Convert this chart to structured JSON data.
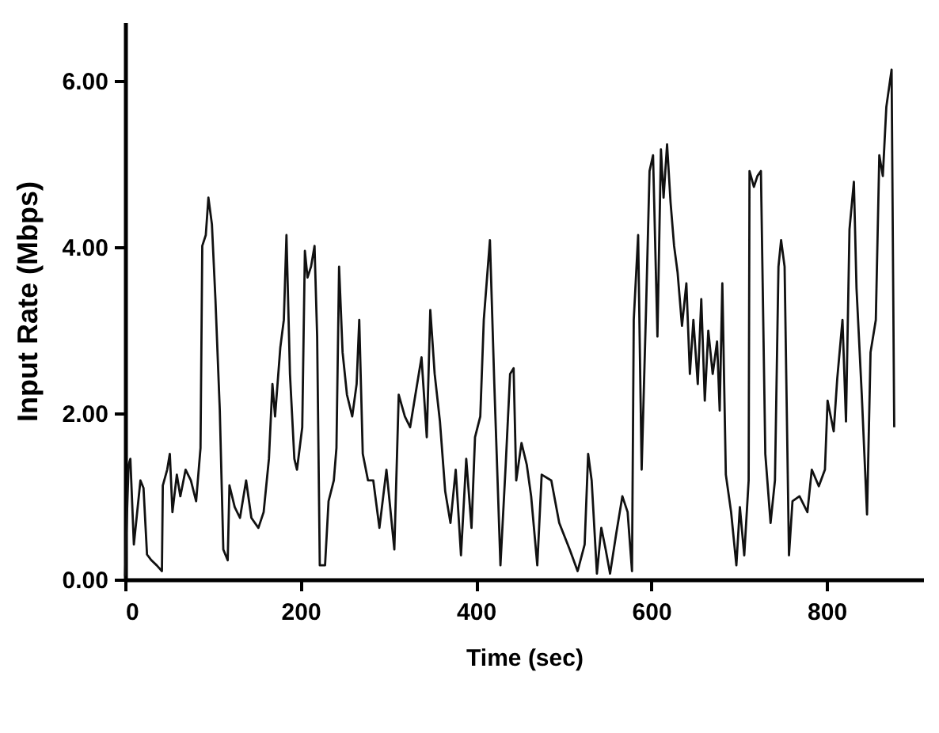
{
  "chart_data": {
    "type": "line",
    "xlabel": "Time (sec)",
    "ylabel": "Input  Rate (Mbps)",
    "xlim": [
      0,
      910
    ],
    "ylim": [
      0,
      6.7
    ],
    "xticks": [
      0,
      200,
      400,
      600,
      800
    ],
    "yticks": [
      {
        "value": 0,
        "label": "0.00"
      },
      {
        "value": 2,
        "label": "2.00"
      },
      {
        "value": 4,
        "label": "4.00"
      },
      {
        "value": 6,
        "label": "6.00"
      }
    ],
    "grid": false,
    "legend": false,
    "marker": "none",
    "line_style": "solid",
    "series": [
      {
        "color": "#111111",
        "x": [
          0,
          1,
          4,
          6,
          10,
          17.5,
          21,
          25,
          30,
          36,
          42,
          43,
          48,
          51,
          54,
          59,
          63,
          69,
          75,
          81,
          86,
          88,
          92,
          95,
          99,
          103,
          108,
          112,
          117,
          119,
          125,
          131,
          138,
          144,
          152,
          158,
          164,
          168,
          171,
          177,
          181,
          184,
          188,
          193,
          196,
          202,
          205,
          208,
          212,
          216,
          219,
          222,
          228,
          232,
          238,
          241,
          244,
          248,
          253,
          259,
          264,
          267,
          271,
          277,
          283,
          290,
          298,
          307,
          312,
          319,
          325,
          331,
          338,
          344,
          348,
          353,
          359,
          365,
          371,
          377,
          383,
          389,
          395,
          399,
          405,
          409,
          416,
          421,
          428,
          434,
          439,
          443,
          446,
          452,
          458,
          463,
          470,
          475,
          486,
          495,
          507,
          516,
          524,
          528,
          532,
          538,
          543,
          548,
          553,
          560,
          567,
          573,
          578,
          580,
          585,
          589,
          594,
          598,
          602,
          607,
          611,
          614,
          618,
          622,
          626,
          630,
          635,
          640,
          644,
          648,
          653,
          657,
          661,
          665,
          670,
          675,
          678,
          681,
          685,
          691,
          697,
          701,
          706,
          711,
          712,
          717,
          721,
          725,
          730,
          736,
          741,
          745,
          748,
          752,
          757,
          761,
          769,
          778,
          783,
          791,
          798,
          801,
          808,
          812,
          818,
          822,
          826,
          831,
          834,
          840,
          846,
          850,
          856,
          860,
          864,
          868,
          874,
          877
        ],
        "values": [
          0.04,
          0.42,
          1.38,
          1.45,
          0.42,
          1.19,
          1.1,
          0.3,
          0.23,
          0.17,
          0.1,
          1.13,
          1.32,
          1.51,
          0.81,
          1.26,
          1.0,
          1.32,
          1.19,
          0.94,
          1.58,
          4.01,
          4.14,
          4.59,
          4.27,
          3.37,
          2.03,
          0.36,
          0.23,
          1.13,
          0.87,
          0.74,
          1.19,
          0.74,
          0.62,
          0.81,
          1.45,
          2.35,
          1.96,
          2.79,
          3.12,
          4.14,
          2.47,
          1.45,
          1.32,
          1.83,
          3.95,
          3.63,
          3.76,
          4.01,
          2.92,
          0.17,
          0.17,
          0.94,
          1.19,
          1.58,
          3.76,
          2.73,
          2.22,
          1.96,
          2.35,
          3.12,
          1.51,
          1.19,
          1.19,
          0.62,
          1.32,
          0.36,
          2.22,
          1.96,
          1.83,
          2.22,
          2.67,
          1.71,
          3.24,
          2.47,
          1.9,
          1.06,
          0.68,
          1.32,
          0.29,
          1.45,
          0.62,
          1.71,
          1.96,
          3.12,
          4.08,
          2.35,
          0.17,
          1.38,
          2.47,
          2.54,
          1.19,
          1.64,
          1.38,
          1.0,
          0.17,
          1.26,
          1.19,
          0.68,
          0.36,
          0.1,
          0.42,
          1.51,
          1.19,
          0.07,
          0.62,
          0.36,
          0.07,
          0.55,
          1.0,
          0.81,
          0.1,
          3.12,
          4.14,
          1.32,
          3.24,
          4.91,
          5.1,
          2.92,
          5.17,
          4.59,
          5.23,
          4.53,
          4.01,
          3.69,
          3.05,
          3.56,
          2.47,
          3.12,
          2.35,
          3.37,
          2.15,
          2.99,
          2.47,
          2.86,
          2.03,
          3.56,
          1.26,
          0.81,
          0.17,
          0.87,
          0.29,
          1.19,
          4.91,
          4.72,
          4.85,
          4.91,
          1.51,
          0.68,
          1.19,
          3.76,
          4.08,
          3.76,
          0.29,
          0.94,
          1.0,
          0.81,
          1.32,
          1.12,
          1.32,
          2.15,
          1.78,
          2.41,
          3.12,
          1.9,
          4.21,
          4.78,
          3.5,
          2.22,
          0.78,
          2.73,
          3.12,
          5.1,
          4.85,
          5.68,
          6.13,
          1.83
        ]
      }
    ]
  }
}
